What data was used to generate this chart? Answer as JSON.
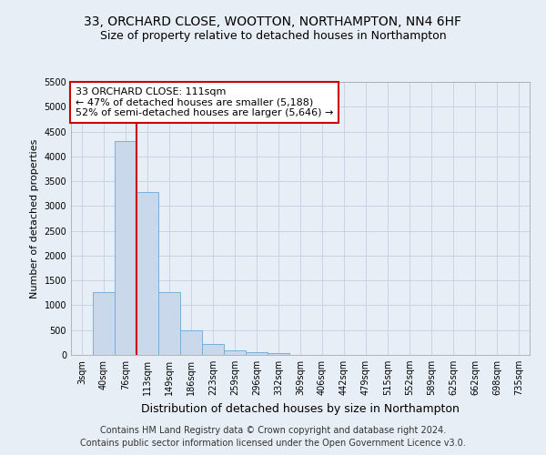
{
  "title": "33, ORCHARD CLOSE, WOOTTON, NORTHAMPTON, NN4 6HF",
  "subtitle": "Size of property relative to detached houses in Northampton",
  "xlabel": "Distribution of detached houses by size in Northampton",
  "ylabel": "Number of detached properties",
  "categories": [
    "3sqm",
    "40sqm",
    "76sqm",
    "113sqm",
    "149sqm",
    "186sqm",
    "223sqm",
    "259sqm",
    "296sqm",
    "332sqm",
    "369sqm",
    "406sqm",
    "442sqm",
    "479sqm",
    "515sqm",
    "552sqm",
    "589sqm",
    "625sqm",
    "662sqm",
    "698sqm",
    "735sqm"
  ],
  "values": [
    0,
    1270,
    4300,
    3280,
    1270,
    490,
    215,
    85,
    55,
    45,
    0,
    0,
    0,
    0,
    0,
    0,
    0,
    0,
    0,
    0,
    0
  ],
  "bar_color": "#c9d9eb",
  "bar_edge_color": "#7bafd4",
  "grid_color": "#c8d4e3",
  "background_color": "#e8eef6",
  "vline_color": "#cc0000",
  "vline_x_index": 2.5,
  "annotation_text": "33 ORCHARD CLOSE: 111sqm\n← 47% of detached houses are smaller (5,188)\n52% of semi-detached houses are larger (5,646) →",
  "annotation_box_color": "#ffffff",
  "annotation_box_edge": "#cc0000",
  "ylim": [
    0,
    5500
  ],
  "yticks": [
    0,
    500,
    1000,
    1500,
    2000,
    2500,
    3000,
    3500,
    4000,
    4500,
    5000,
    5500
  ],
  "footer1": "Contains HM Land Registry data © Crown copyright and database right 2024.",
  "footer2": "Contains public sector information licensed under the Open Government Licence v3.0.",
  "title_fontsize": 10,
  "subtitle_fontsize": 9,
  "xlabel_fontsize": 9,
  "ylabel_fontsize": 8,
  "tick_fontsize": 7,
  "annotation_fontsize": 8,
  "footer_fontsize": 7
}
